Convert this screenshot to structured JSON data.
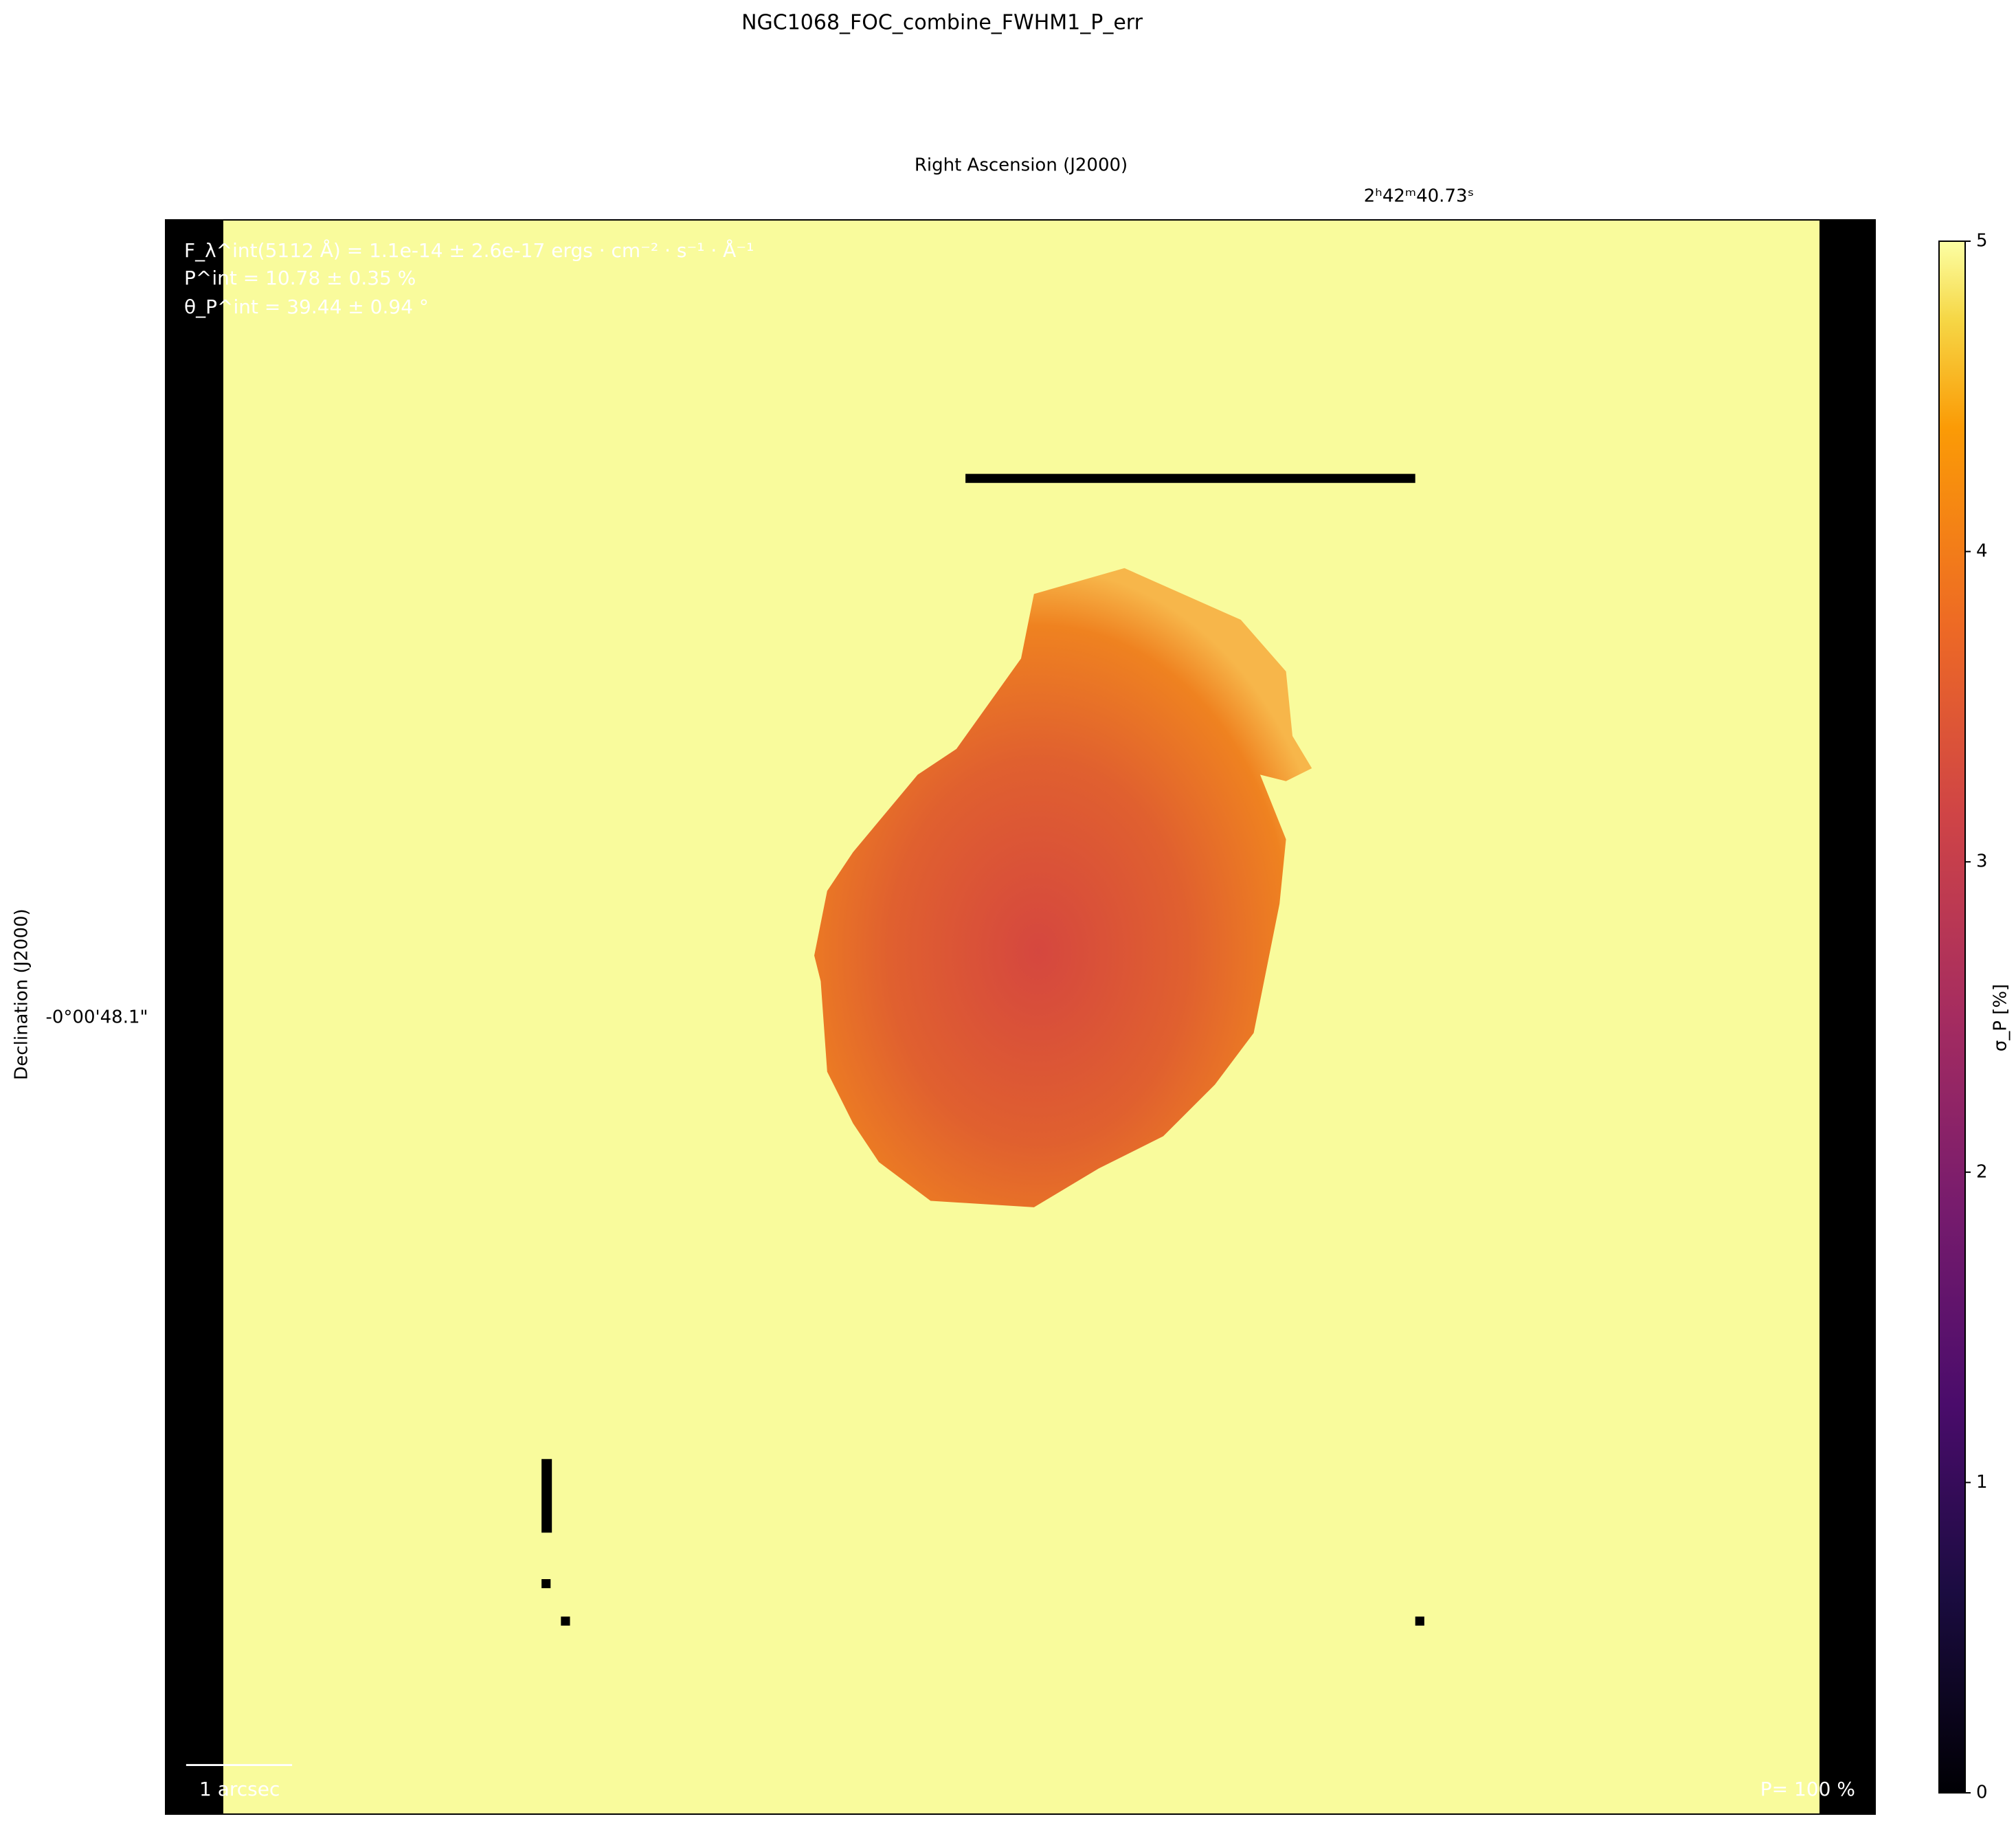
{
  "chart_data": {
    "type": "heatmap",
    "title": "NGC1068_FOC_combine_FWHM1_P_err",
    "xlabel": "Right Ascension (J2000)",
    "ylabel": "Declination (J2000)",
    "x_tick_label": "2ʰ42ᵐ40.73ˢ",
    "y_tick_label": "-0°00'48.1\"",
    "annotations": [
      "F_λ^int(5112 Å) = 1.1e-14 ± 2.6e-17 ergs · cm⁻² · s⁻¹ · Å⁻¹",
      "P^int = 10.78 ± 0.35 %",
      "θ_P^int = 39.44 ± 0.94 °"
    ],
    "scale_label": "1 arcsec",
    "vector_scale_label": "P= 100 %",
    "colorbar_label": "σ_P [%]",
    "clim": [
      0,
      5
    ],
    "colorbar_ticks": [
      0,
      1,
      2,
      3,
      4,
      5
    ]
  }
}
